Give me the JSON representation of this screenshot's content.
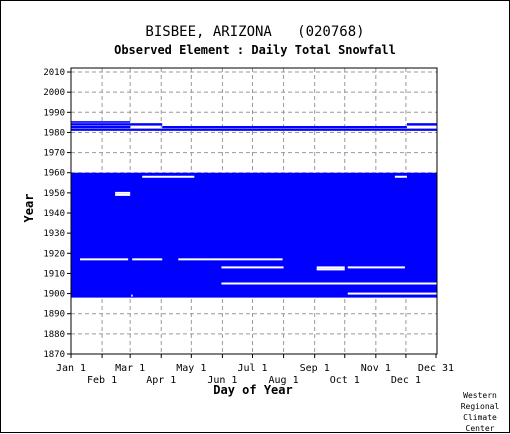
{
  "title": "BISBEE, ARIZONA   (020768)",
  "subtitle": "Observed Element : Daily Total Snowfall",
  "credit": "Western\nRegional\nClimate\nCenter",
  "chart_data": {
    "type": "heatmap",
    "title": "BISBEE, ARIZONA   (020768)",
    "subtitle": "Observed Element : Daily Total Snowfall",
    "xlabel": "Day of Year",
    "ylabel": "Year",
    "xlim": [
      1,
      366
    ],
    "ylim": [
      1870,
      2012
    ],
    "grid": true,
    "y_ticks": [
      1870,
      1880,
      1890,
      1900,
      1910,
      1920,
      1930,
      1940,
      1950,
      1960,
      1970,
      1980,
      1990,
      2000,
      2010
    ],
    "x_ticks_top_row": [
      {
        "label": "Jan 1",
        "day": 1
      },
      {
        "label": "Mar 1",
        "day": 60
      },
      {
        "label": "May 1",
        "day": 121
      },
      {
        "label": "Jul 1",
        "day": 182
      },
      {
        "label": "Sep 1",
        "day": 244
      },
      {
        "label": "Nov 1",
        "day": 305
      },
      {
        "label": "Dec 31",
        "day": 365
      }
    ],
    "x_ticks_bottom_row": [
      {
        "label": "Feb 1",
        "day": 32
      },
      {
        "label": "Apr 1",
        "day": 91
      },
      {
        "label": "Jun 1",
        "day": 152
      },
      {
        "label": "Aug 1",
        "day": 213
      },
      {
        "label": "Oct 1",
        "day": 274
      },
      {
        "label": "Dec 1",
        "day": 335
      }
    ],
    "data_color": "#0000ff",
    "data_blocks": [
      {
        "years": [
          1898,
          1960
        ],
        "days": [
          1,
          366
        ]
      },
      {
        "years": [
          1980.8,
          1981.9
        ],
        "days": [
          1,
          366
        ]
      },
      {
        "years": [
          1982.1,
          1983.2
        ],
        "days": [
          1,
          60
        ]
      },
      {
        "years": [
          1982.1,
          1983.2
        ],
        "days": [
          92,
          336
        ]
      },
      {
        "years": [
          1983.4,
          1984.6
        ],
        "days": [
          1,
          60
        ]
      },
      {
        "years": [
          1983.4,
          1984.6
        ],
        "days": [
          60,
          92
        ]
      },
      {
        "years": [
          1983.4,
          1984.6
        ],
        "days": [
          336,
          366
        ]
      },
      {
        "years": [
          1984.8,
          1985.6
        ],
        "days": [
          1,
          60
        ]
      }
    ],
    "missing_gaps": [
      {
        "year": 1958,
        "days": [
          72,
          124
        ]
      },
      {
        "year": 1950,
        "days": [
          45,
          60
        ]
      },
      {
        "year": 1949,
        "days": [
          45,
          60
        ]
      },
      {
        "year": 1917,
        "days": [
          10,
          58
        ]
      },
      {
        "year": 1917,
        "days": [
          62,
          92
        ]
      },
      {
        "year": 1917,
        "days": [
          108,
          212
        ]
      },
      {
        "year": 1913,
        "days": [
          151,
          213
        ]
      },
      {
        "year": 1913,
        "days": [
          246,
          274
        ]
      },
      {
        "year": 1913,
        "days": [
          277,
          334
        ]
      },
      {
        "year": 1912,
        "days": [
          246,
          274
        ]
      },
      {
        "year": 1905,
        "days": [
          151,
          366
        ]
      },
      {
        "year": 1900,
        "days": [
          277,
          366
        ]
      },
      {
        "year": 1899,
        "days": [
          61,
          61
        ]
      },
      {
        "year": 1958,
        "days": [
          324,
          336
        ]
      }
    ]
  }
}
